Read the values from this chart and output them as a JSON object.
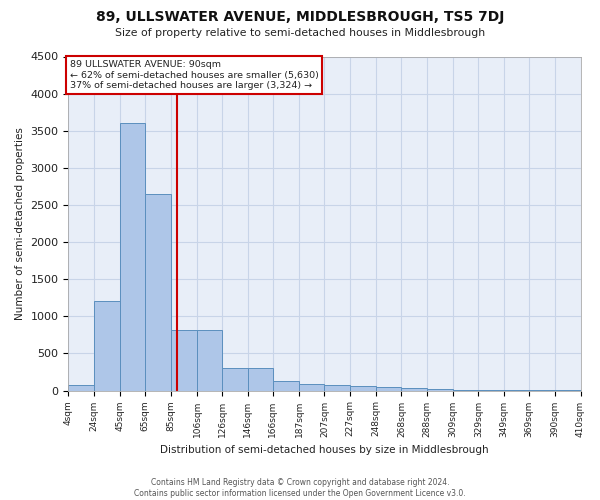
{
  "title": "89, ULLSWATER AVENUE, MIDDLESBROUGH, TS5 7DJ",
  "subtitle": "Size of property relative to semi-detached houses in Middlesbrough",
  "xlabel": "Distribution of semi-detached houses by size in Middlesbrough",
  "ylabel": "Number of semi-detached properties",
  "annotation_title": "89 ULLSWATER AVENUE: 90sqm",
  "annotation_smaller": "← 62% of semi-detached houses are smaller (5,630)",
  "annotation_larger": "37% of semi-detached houses are larger (3,324) →",
  "footer_line1": "Contains HM Land Registry data © Crown copyright and database right 2024.",
  "footer_line2": "Contains public sector information licensed under the Open Government Licence v3.0.",
  "property_size": 90,
  "bar_color": "#aec6e8",
  "bar_edge_color": "#5b8fbe",
  "vline_color": "#cc0000",
  "annotation_box_color": "#cc0000",
  "grid_color": "#c8d4e8",
  "background_color": "#e8eef8",
  "bins": [
    4,
    24,
    45,
    65,
    85,
    106,
    126,
    146,
    166,
    187,
    207,
    227,
    248,
    268,
    288,
    309,
    329,
    349,
    369,
    390,
    410
  ],
  "counts": [
    75,
    1200,
    3600,
    2650,
    820,
    820,
    300,
    300,
    130,
    90,
    70,
    60,
    50,
    30,
    20,
    12,
    8,
    5,
    4,
    2
  ],
  "ylim": [
    0,
    4500
  ],
  "yticks": [
    0,
    500,
    1000,
    1500,
    2000,
    2500,
    3000,
    3500,
    4000,
    4500
  ]
}
